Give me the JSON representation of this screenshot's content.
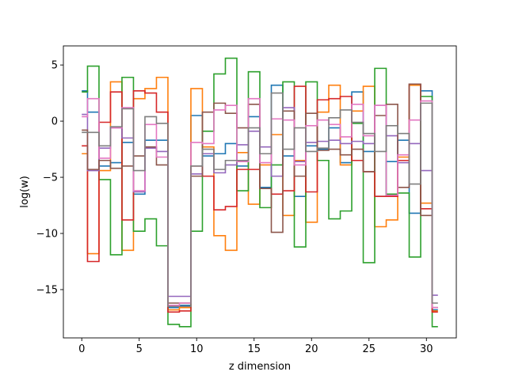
{
  "chart_data": {
    "type": "line",
    "drawstyle": "steps-mid",
    "xlabel": "z dimension",
    "ylabel": "log(w)",
    "xlim": [
      -1.6,
      32.6
    ],
    "ylim": [
      -19.3,
      6.7
    ],
    "xticks": [
      0,
      5,
      10,
      15,
      20,
      25,
      30
    ],
    "yticks": [
      5,
      0,
      -5,
      -10,
      -15
    ],
    "ytick_labels": [
      "5",
      "0",
      "−5",
      "−10",
      "−15"
    ],
    "grid": false,
    "legend": "none",
    "x": [
      0,
      1,
      2,
      3,
      4,
      5,
      6,
      7,
      8,
      9,
      10,
      11,
      12,
      13,
      14,
      15,
      16,
      17,
      18,
      19,
      20,
      21,
      22,
      23,
      24,
      25,
      26,
      27,
      28,
      29,
      30,
      31
    ],
    "series": [
      {
        "color": "#1f77b4",
        "values": [
          2.7,
          0.8,
          -4.0,
          -3.7,
          -1.9,
          -6.5,
          -1.7,
          -1.7,
          -16.6,
          -16.4,
          0.5,
          -3.1,
          -2.9,
          -2.0,
          -4.0,
          0.4,
          -5.9,
          3.2,
          -3.1,
          -6.7,
          -2.2,
          -2.5,
          -0.6,
          -3.7,
          2.6,
          -2.7,
          -6.7,
          -3.6,
          -1.7,
          -8.2,
          2.7,
          -16.8
        ]
      },
      {
        "color": "#ff7f0e",
        "values": [
          -2.9,
          -11.8,
          -4.4,
          3.5,
          -11.5,
          2.0,
          2.9,
          3.9,
          -16.8,
          -16.6,
          2.9,
          -2.3,
          -10.2,
          -11.5,
          -2.8,
          -7.4,
          -3.9,
          -1.2,
          -8.4,
          -3.5,
          -9.0,
          0.8,
          3.2,
          -3.9,
          0.9,
          3.1,
          -9.4,
          -8.8,
          -3.2,
          3.2,
          -7.3,
          -16.9
        ]
      },
      {
        "color": "#2ca02c",
        "values": [
          2.6,
          4.9,
          -5.2,
          -11.9,
          3.9,
          -9.8,
          -8.7,
          -11.1,
          -18.1,
          -18.3,
          -9.8,
          -0.9,
          4.2,
          5.6,
          -6.2,
          4.4,
          -7.7,
          -3.9,
          3.5,
          -11.2,
          3.5,
          -3.5,
          -8.7,
          -8.0,
          -0.2,
          -12.6,
          4.7,
          -6.5,
          -6.4,
          -12.1,
          2.2,
          -18.3
        ]
      },
      {
        "color": "#d62728",
        "values": [
          -2.2,
          -12.5,
          -0.1,
          2.6,
          -8.8,
          2.7,
          2.5,
          0.8,
          -17.0,
          -16.9,
          -4.0,
          -4.9,
          -7.9,
          -7.6,
          -4.3,
          -4.3,
          -6.0,
          -6.5,
          -6.2,
          3.1,
          -6.3,
          1.9,
          2.0,
          2.2,
          -3.5,
          -4.5,
          -6.7,
          -6.7,
          -3.5,
          3.3,
          -7.8,
          -17.0
        ]
      },
      {
        "color": "#9467bd",
        "values": [
          0.6,
          -4.4,
          -2.4,
          -0.6,
          -1.5,
          -6.3,
          -2.4,
          -2.7,
          -15.6,
          -15.6,
          -4.7,
          -2.9,
          -4.6,
          -3.9,
          -2.1,
          -0.9,
          -2.3,
          -4.9,
          1.2,
          -3.6,
          -1.9,
          -1.8,
          -1.7,
          -2.0,
          -1.8,
          -2.0,
          1.4,
          -1.3,
          -3.7,
          -2.0,
          -4.4,
          -15.5
        ]
      },
      {
        "color": "#8c564b",
        "values": [
          -0.8,
          -4.3,
          -3.5,
          -4.2,
          -4.0,
          -3.1,
          -2.3,
          -3.9,
          -16.2,
          -16.2,
          -4.9,
          0.8,
          1.6,
          0.7,
          -0.6,
          1.5,
          -6.0,
          -9.9,
          0.9,
          -4.9,
          0.7,
          -2.6,
          -2.5,
          -3.0,
          -2.5,
          -4.5,
          0.5,
          1.5,
          -5.9,
          3.3,
          -8.4,
          -16.6
        ]
      },
      {
        "color": "#e377c2",
        "values": [
          0.4,
          2.0,
          -3.3,
          -0.6,
          1.2,
          -6.2,
          -0.3,
          -3.2,
          -16.4,
          -16.2,
          -1.9,
          -2.0,
          1.0,
          1.4,
          -3.6,
          2.0,
          -3.7,
          0.2,
          0.1,
          -3.9,
          -0.4,
          0.1,
          -0.3,
          -1.4,
          1.5,
          -1.3,
          1.4,
          -6.6,
          -3.0,
          0.1,
          1.8,
          -16.6
        ]
      },
      {
        "color": "#7f7f7f",
        "values": [
          -1.0,
          -1.0,
          -2.2,
          -0.5,
          1.1,
          -4.4,
          0.4,
          -0.2,
          -16.5,
          -16.5,
          -4.0,
          -2.5,
          -4.3,
          -3.5,
          -3.5,
          -0.6,
          -2.9,
          2.5,
          -2.5,
          -0.6,
          -2.7,
          -2.4,
          0.3,
          1.0,
          -0.1,
          -1.1,
          -2.7,
          -0.4,
          -1.1,
          -5.6,
          1.6,
          -16.2
        ]
      }
    ]
  }
}
